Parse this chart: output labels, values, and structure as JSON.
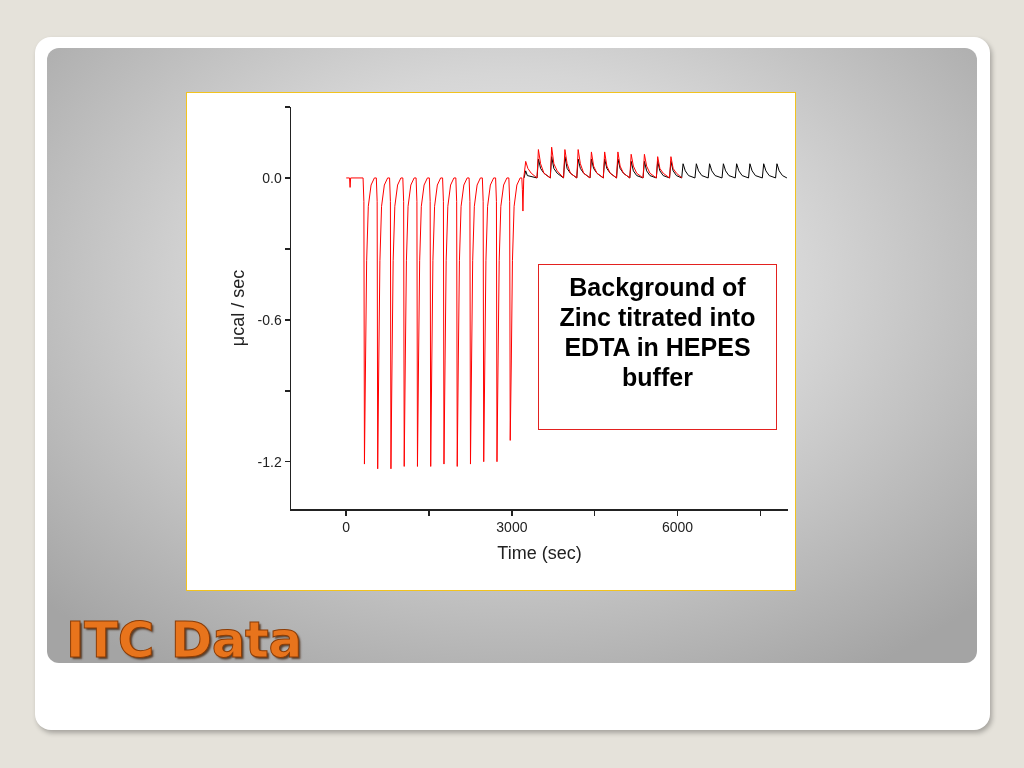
{
  "chart_data": {
    "type": "line",
    "title": "ITC Data",
    "xlabel": "Time (sec)",
    "ylabel": "μcal / sec",
    "annotations": [
      "Background of Zinc titrated into EDTA in HEPES buffer"
    ],
    "xlim": [
      -1000,
      8000
    ],
    "xticks": [
      0,
      {
        "value": 1500,
        "label": null
      },
      3000,
      {
        "value": 4500,
        "label": null
      },
      6000,
      {
        "value": 7500,
        "label": null
      }
    ],
    "ylim": [
      -1.4,
      0.3
    ],
    "yticks": [
      {
        "value": 0.3,
        "label": null
      },
      {
        "value": 0,
        "label": "0.0"
      },
      {
        "value": -0.3,
        "label": null
      },
      {
        "value": -0.6,
        "label": "-0.6"
      },
      {
        "value": -0.9,
        "label": null
      },
      {
        "value": -1.2,
        "label": "-1.2"
      }
    ],
    "series": [
      {
        "color": "#000000",
        "x": [
          3220,
          3250,
          3280,
          3455,
          3480,
          3520,
          3580,
          3695,
          3720,
          3760,
          3820,
          3935,
          3960,
          4000,
          4060,
          4175,
          4200,
          4240,
          4300,
          4415,
          4440,
          4480,
          4540,
          4655,
          4680,
          4720,
          4780,
          4895,
          4920,
          4960,
          5020,
          5135,
          5160,
          5200,
          5260,
          5375,
          5400,
          5440,
          5500,
          5615,
          5640,
          5680,
          5740,
          5855,
          5880,
          5920,
          5980,
          6075,
          6100,
          6140,
          6200,
          6315,
          6340,
          6380,
          6440,
          6555,
          6580,
          6620,
          6680,
          6805,
          6830,
          6870,
          6930,
          7045,
          7070,
          7110,
          7170,
          7285,
          7310,
          7350,
          7410,
          7535,
          7560,
          7600,
          7660,
          7775,
          7800,
          7840,
          7900,
          7980
        ],
        "values": [
          0,
          0.03,
          0.01,
          0,
          0.08,
          0.04,
          0.02,
          0,
          0.09,
          0.04,
          0.02,
          0,
          0.09,
          0.04,
          0.02,
          0,
          0.08,
          0.04,
          0.02,
          0,
          0.08,
          0.04,
          0.02,
          0,
          0.08,
          0.04,
          0.02,
          0,
          0.08,
          0.04,
          0.02,
          0,
          0.07,
          0.03,
          0.01,
          0,
          0.07,
          0.03,
          0.01,
          0,
          0.07,
          0.03,
          0.01,
          0,
          0.07,
          0.03,
          0.01,
          0,
          0.06,
          0.03,
          0.01,
          0,
          0.06,
          0.03,
          0.01,
          0,
          0.06,
          0.03,
          0.01,
          0,
          0.06,
          0.03,
          0.01,
          0,
          0.06,
          0.03,
          0.01,
          0,
          0.06,
          0.03,
          0.01,
          0,
          0.06,
          0.03,
          0.01,
          0,
          0.06,
          0.03,
          0.01,
          0
        ]
      },
      {
        "color": "#ff0000",
        "x": [
          0,
          60,
          70,
          80,
          305,
          320,
          330,
          350,
          370,
          400,
          450,
          510,
          545,
          560,
          570,
          590,
          610,
          640,
          690,
          750,
          785,
          800,
          810,
          830,
          850,
          880,
          930,
          990,
          1025,
          1040,
          1050,
          1070,
          1090,
          1120,
          1170,
          1230,
          1265,
          1280,
          1290,
          1310,
          1330,
          1360,
          1410,
          1470,
          1505,
          1520,
          1530,
          1550,
          1570,
          1600,
          1650,
          1710,
          1745,
          1760,
          1770,
          1790,
          1810,
          1840,
          1890,
          1950,
          1985,
          2000,
          2010,
          2030,
          2050,
          2080,
          2130,
          2190,
          2225,
          2240,
          2250,
          2270,
          2290,
          2320,
          2370,
          2430,
          2465,
          2480,
          2490,
          2510,
          2530,
          2560,
          2610,
          2670,
          2705,
          2720,
          2730,
          2750,
          2770,
          2800,
          2850,
          2910,
          2945,
          2960,
          2970,
          2990,
          3010,
          3040,
          3090,
          3150,
          3180,
          3190,
          3200,
          3215,
          3250,
          3290,
          3350,
          3455,
          3480,
          3520,
          3580,
          3695,
          3720,
          3760,
          3820,
          3935,
          3960,
          4000,
          4060,
          4175,
          4200,
          4240,
          4300,
          4415,
          4440,
          4480,
          4540,
          4655,
          4680,
          4720,
          4780,
          4895,
          4920,
          4960,
          5020,
          5135,
          5160,
          5200,
          5260,
          5375,
          5400,
          5440,
          5500,
          5615,
          5640,
          5680,
          5740,
          5855,
          5880,
          5920,
          5980,
          6080
        ],
        "values": [
          0,
          0,
          -0.04,
          0,
          0,
          -0.1,
          -1.21,
          -0.77,
          -0.35,
          -0.12,
          -0.03,
          0,
          0,
          -0.1,
          -1.23,
          -0.77,
          -0.35,
          -0.12,
          -0.03,
          0,
          0,
          -0.1,
          -1.23,
          -0.77,
          -0.35,
          -0.12,
          -0.03,
          0,
          0,
          -0.1,
          -1.22,
          -0.77,
          -0.35,
          -0.12,
          -0.03,
          0,
          0,
          -0.1,
          -1.22,
          -0.77,
          -0.35,
          -0.12,
          -0.03,
          0,
          0,
          -0.1,
          -1.22,
          -0.77,
          -0.35,
          -0.12,
          -0.03,
          0,
          0,
          -0.1,
          -1.21,
          -0.77,
          -0.35,
          -0.12,
          -0.03,
          0,
          0,
          -0.1,
          -1.22,
          -0.77,
          -0.35,
          -0.12,
          -0.03,
          0,
          0,
          -0.1,
          -1.21,
          -0.77,
          -0.35,
          -0.12,
          -0.03,
          0,
          0,
          -0.1,
          -1.2,
          -0.77,
          -0.35,
          -0.12,
          -0.03,
          0,
          0,
          -0.1,
          -1.2,
          -0.77,
          -0.35,
          -0.12,
          -0.03,
          0,
          0,
          -0.1,
          -1.11,
          -0.77,
          -0.35,
          -0.12,
          -0.03,
          0,
          0,
          -0.05,
          -0.14,
          0,
          0.07,
          0.04,
          0.02,
          0,
          0.12,
          0.06,
          0.02,
          0,
          0.13,
          0.06,
          0.03,
          0,
          0.12,
          0.06,
          0.02,
          0,
          0.12,
          0.06,
          0.02,
          0,
          0.11,
          0.05,
          0.02,
          0,
          0.11,
          0.05,
          0.02,
          0,
          0.11,
          0.05,
          0.02,
          0,
          0.1,
          0.05,
          0.02,
          0,
          0.1,
          0.05,
          0.02,
          0,
          0.09,
          0.04,
          0.02,
          0,
          0.09,
          0.04,
          0.02,
          0
        ]
      }
    ]
  }
}
